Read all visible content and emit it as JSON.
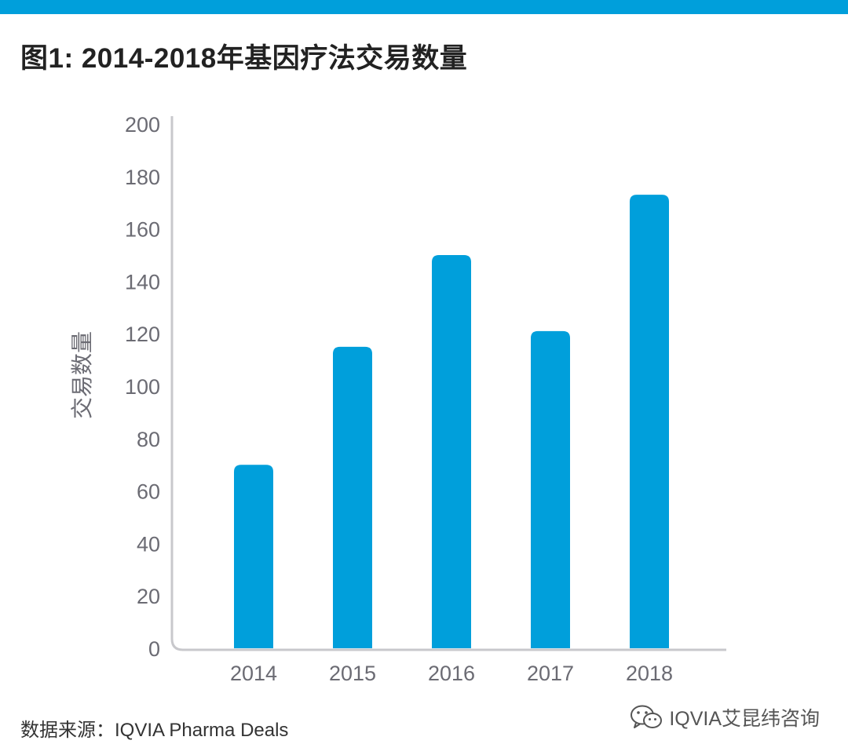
{
  "title": "图1: 2014-2018年基因疗法交易数量",
  "source": "数据来源：IQVIA Pharma Deals",
  "watermark": {
    "icon": "wechat-icon",
    "text": "IQVIA艾昆纬咨询"
  },
  "colors": {
    "bar": "#009fdb",
    "axis": "#c8c8cc",
    "tick_text": "#6b6b73",
    "accent_bar": "#009fdb"
  },
  "chart_data": {
    "type": "bar",
    "title": "图1: 2014-2018年基因疗法交易数量",
    "categories": [
      "2014",
      "2015",
      "2016",
      "2017",
      "2018"
    ],
    "values": [
      70,
      115,
      150,
      121,
      173
    ],
    "xlabel": "",
    "ylabel": "交易数量",
    "ylim": [
      0,
      200
    ],
    "yticks": [
      0,
      20,
      40,
      60,
      80,
      100,
      120,
      140,
      160,
      180,
      200
    ],
    "grid": false,
    "legend": "none"
  }
}
